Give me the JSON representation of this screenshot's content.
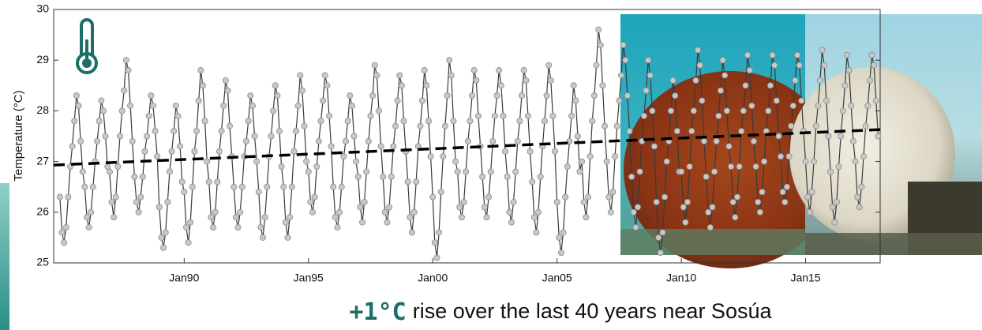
{
  "chart_data": {
    "type": "line",
    "y_label": "Temperature (°C)",
    "caption": {
      "highlight": "+1°C",
      "text": "rise over the last 40 years near Sosúa"
    },
    "xlim": [
      "1984-10",
      "2018-01"
    ],
    "xticks": [
      {
        "value": "1990-01",
        "label": "Jan90"
      },
      {
        "value": "1995-01",
        "label": "Jan95"
      },
      {
        "value": "2000-01",
        "label": "Jan00"
      },
      {
        "value": "2005-01",
        "label": "Jan05"
      },
      {
        "value": "2010-01",
        "label": "Jan10"
      },
      {
        "value": "2015-01",
        "label": "Jan15"
      }
    ],
    "ylim": [
      25,
      30
    ],
    "yticks": [
      25,
      26,
      27,
      28,
      29,
      30
    ],
    "color": "#3a3a3a",
    "marker_color": "#c8c8c8",
    "trend": {
      "color": "#000000",
      "x": [
        "1984-10",
        "2018-01"
      ],
      "values": [
        26.93,
        27.63
      ]
    },
    "x": [
      "1985-01",
      "1985-02",
      "1985-03",
      "1985-04",
      "1985-05",
      "1985-06",
      "1985-07",
      "1985-08",
      "1985-09",
      "1985-10",
      "1985-11",
      "1985-12",
      "1986-01",
      "1986-02",
      "1986-03",
      "1986-04",
      "1986-05",
      "1986-06",
      "1986-07",
      "1986-08",
      "1986-09",
      "1986-10",
      "1986-11",
      "1986-12",
      "1987-01",
      "1987-02",
      "1987-03",
      "1987-04",
      "1987-05",
      "1987-06",
      "1987-07",
      "1987-08",
      "1987-09",
      "1987-10",
      "1987-11",
      "1987-12",
      "1988-01",
      "1988-02",
      "1988-03",
      "1988-04",
      "1988-05",
      "1988-06",
      "1988-07",
      "1988-08",
      "1988-09",
      "1988-10",
      "1988-11",
      "1988-12",
      "1989-01",
      "1989-02",
      "1989-03",
      "1989-04",
      "1989-05",
      "1989-06",
      "1989-07",
      "1989-08",
      "1989-09",
      "1989-10",
      "1989-11",
      "1989-12",
      "1990-01",
      "1990-02",
      "1990-03",
      "1990-04",
      "1990-05",
      "1990-06",
      "1990-07",
      "1990-08",
      "1990-09",
      "1990-10",
      "1990-11",
      "1990-12",
      "1991-01",
      "1991-02",
      "1991-03",
      "1991-04",
      "1991-05",
      "1991-06",
      "1991-07",
      "1991-08",
      "1991-09",
      "1991-10",
      "1991-11",
      "1991-12",
      "1992-01",
      "1992-02",
      "1992-03",
      "1992-04",
      "1992-05",
      "1992-06",
      "1992-07",
      "1992-08",
      "1992-09",
      "1992-10",
      "1992-11",
      "1992-12",
      "1993-01",
      "1993-02",
      "1993-03",
      "1993-04",
      "1993-05",
      "1993-06",
      "1993-07",
      "1993-08",
      "1993-09",
      "1993-10",
      "1993-11",
      "1993-12",
      "1994-01",
      "1994-02",
      "1994-03",
      "1994-04",
      "1994-05",
      "1994-06",
      "1994-07",
      "1994-08",
      "1994-09",
      "1994-10",
      "1994-11",
      "1994-12",
      "1995-01",
      "1995-02",
      "1995-03",
      "1995-04",
      "1995-05",
      "1995-06",
      "1995-07",
      "1995-08",
      "1995-09",
      "1995-10",
      "1995-11",
      "1995-12",
      "1996-01",
      "1996-02",
      "1996-03",
      "1996-04",
      "1996-05",
      "1996-06",
      "1996-07",
      "1996-08",
      "1996-09",
      "1996-10",
      "1996-11",
      "1996-12",
      "1997-01",
      "1997-02",
      "1997-03",
      "1997-04",
      "1997-05",
      "1997-06",
      "1997-07",
      "1997-08",
      "1997-09",
      "1997-10",
      "1997-11",
      "1997-12",
      "1998-01",
      "1998-02",
      "1998-03",
      "1998-04",
      "1998-05",
      "1998-06",
      "1998-07",
      "1998-08",
      "1998-09",
      "1998-10",
      "1998-11",
      "1998-12",
      "1999-01",
      "1999-02",
      "1999-03",
      "1999-04",
      "1999-05",
      "1999-06",
      "1999-07",
      "1999-08",
      "1999-09",
      "1999-10",
      "1999-11",
      "1999-12",
      "2000-01",
      "2000-02",
      "2000-03",
      "2000-04",
      "2000-05",
      "2000-06",
      "2000-07",
      "2000-08",
      "2000-09",
      "2000-10",
      "2000-11",
      "2000-12",
      "2001-01",
      "2001-02",
      "2001-03",
      "2001-04",
      "2001-05",
      "2001-06",
      "2001-07",
      "2001-08",
      "2001-09",
      "2001-10",
      "2001-11",
      "2001-12",
      "2002-01",
      "2002-02",
      "2002-03",
      "2002-04",
      "2002-05",
      "2002-06",
      "2002-07",
      "2002-08",
      "2002-09",
      "2002-10",
      "2002-11",
      "2002-12",
      "2003-01",
      "2003-02",
      "2003-03",
      "2003-04",
      "2003-05",
      "2003-06",
      "2003-07",
      "2003-08",
      "2003-09",
      "2003-10",
      "2003-11",
      "2003-12",
      "2004-01",
      "2004-02",
      "2004-03",
      "2004-04",
      "2004-05",
      "2004-06",
      "2004-07",
      "2004-08",
      "2004-09",
      "2004-10",
      "2004-11",
      "2004-12",
      "2005-01",
      "2005-02",
      "2005-03",
      "2005-04",
      "2005-05",
      "2005-06",
      "2005-07",
      "2005-08",
      "2005-09",
      "2005-10",
      "2005-11",
      "2005-12",
      "2006-01",
      "2006-02",
      "2006-03",
      "2006-04",
      "2006-05",
      "2006-06",
      "2006-07",
      "2006-08",
      "2006-09",
      "2006-10",
      "2006-11",
      "2006-12",
      "2007-01",
      "2007-02",
      "2007-03",
      "2007-04",
      "2007-05",
      "2007-06",
      "2007-07",
      "2007-08",
      "2007-09",
      "2007-10",
      "2007-11",
      "2007-12",
      "2008-01",
      "2008-02",
      "2008-03",
      "2008-04",
      "2008-05",
      "2008-06",
      "2008-07",
      "2008-08",
      "2008-09",
      "2008-10",
      "2008-11",
      "2008-12",
      "2009-01",
      "2009-02",
      "2009-03",
      "2009-04",
      "2009-05",
      "2009-06",
      "2009-07",
      "2009-08",
      "2009-09",
      "2009-10",
      "2009-11",
      "2009-12",
      "2010-01",
      "2010-02",
      "2010-03",
      "2010-04",
      "2010-05",
      "2010-06",
      "2010-07",
      "2010-08",
      "2010-09",
      "2010-10",
      "2010-11",
      "2010-12",
      "2011-01",
      "2011-02",
      "2011-03",
      "2011-04",
      "2011-05",
      "2011-06",
      "2011-07",
      "2011-08",
      "2011-09",
      "2011-10",
      "2011-11",
      "2011-12",
      "2012-01",
      "2012-02",
      "2012-03",
      "2012-04",
      "2012-05",
      "2012-06",
      "2012-07",
      "2012-08",
      "2012-09",
      "2012-10",
      "2012-11",
      "2012-12",
      "2013-01",
      "2013-02",
      "2013-03",
      "2013-04",
      "2013-05",
      "2013-06",
      "2013-07",
      "2013-08",
      "2013-09",
      "2013-10",
      "2013-11",
      "2013-12",
      "2014-01",
      "2014-02",
      "2014-03",
      "2014-04",
      "2014-05",
      "2014-06",
      "2014-07",
      "2014-08",
      "2014-09",
      "2014-10",
      "2014-11",
      "2014-12",
      "2015-01",
      "2015-02",
      "2015-03",
      "2015-04",
      "2015-05",
      "2015-06",
      "2015-07",
      "2015-08",
      "2015-09",
      "2015-10",
      "2015-11",
      "2015-12",
      "2016-01",
      "2016-02",
      "2016-03",
      "2016-04",
      "2016-05",
      "2016-06",
      "2016-07",
      "2016-08",
      "2016-09",
      "2016-10",
      "2016-11",
      "2016-12",
      "2017-01",
      "2017-02",
      "2017-03",
      "2017-04",
      "2017-05",
      "2017-06",
      "2017-07",
      "2017-08",
      "2017-09",
      "2017-10",
      "2017-11",
      "2017-12"
    ],
    "values": [
      26.3,
      25.6,
      25.4,
      25.7,
      26.3,
      26.9,
      27.3,
      27.8,
      28.3,
      28.1,
      27.4,
      26.8,
      26.5,
      25.9,
      25.7,
      26.0,
      26.5,
      27.0,
      27.4,
      27.8,
      28.2,
      28.0,
      27.5,
      26.9,
      26.8,
      26.2,
      25.9,
      26.3,
      26.9,
      27.5,
      28.0,
      28.4,
      29.0,
      28.8,
      28.1,
      27.4,
      26.7,
      26.2,
      26.0,
      26.3,
      26.7,
      27.2,
      27.5,
      27.9,
      28.3,
      28.1,
      27.6,
      27.1,
      26.1,
      25.5,
      25.3,
      25.6,
      26.2,
      26.8,
      27.2,
      27.6,
      28.1,
      27.9,
      27.3,
      26.6,
      26.4,
      25.7,
      25.4,
      25.8,
      26.5,
      27.2,
      27.6,
      28.2,
      28.8,
      28.5,
      27.8,
      27.0,
      26.6,
      25.9,
      25.7,
      26.0,
      26.6,
      27.2,
      27.6,
      28.1,
      28.6,
      28.4,
      27.7,
      27.1,
      26.5,
      25.9,
      25.7,
      26.0,
      26.5,
      27.1,
      27.4,
      27.8,
      28.3,
      28.1,
      27.5,
      27.0,
      26.4,
      25.7,
      25.5,
      25.9,
      26.5,
      27.1,
      27.5,
      28.0,
      28.5,
      28.3,
      27.6,
      26.9,
      26.5,
      25.8,
      25.5,
      25.9,
      26.5,
      27.2,
      27.6,
      28.1,
      28.7,
      28.4,
      27.7,
      27.0,
      26.8,
      26.2,
      26.0,
      26.3,
      26.9,
      27.4,
      27.8,
      28.2,
      28.7,
      28.5,
      27.9,
      27.3,
      26.5,
      25.9,
      25.7,
      26.0,
      26.5,
      27.1,
      27.4,
      27.8,
      28.3,
      28.1,
      27.5,
      27.0,
      26.7,
      26.1,
      25.8,
      26.2,
      26.8,
      27.4,
      27.9,
      28.3,
      28.9,
      28.7,
      28.0,
      27.3,
      26.7,
      26.0,
      25.8,
      26.1,
      26.7,
      27.3,
      27.7,
      28.2,
      28.7,
      28.5,
      27.8,
      27.2,
      26.6,
      25.9,
      25.6,
      26.0,
      26.6,
      27.3,
      27.7,
      28.2,
      28.8,
      28.5,
      27.8,
      27.1,
      26.3,
      25.4,
      25.1,
      25.6,
      26.4,
      27.1,
      27.7,
      28.3,
      29.0,
      28.7,
      27.8,
      27.0,
      26.8,
      26.1,
      25.9,
      26.2,
      26.8,
      27.4,
      27.8,
      28.3,
      28.8,
      28.6,
      27.9,
      27.3,
      26.7,
      26.1,
      25.9,
      26.3,
      26.8,
      27.4,
      27.9,
      28.3,
      28.8,
      28.5,
      27.9,
      27.2,
      26.7,
      26.0,
      25.8,
      26.2,
      26.8,
      27.4,
      27.8,
      28.3,
      28.8,
      28.6,
      27.9,
      27.2,
      26.6,
      25.9,
      25.6,
      26.0,
      26.7,
      27.3,
      27.8,
      28.3,
      28.9,
      28.6,
      27.9,
      27.2,
      26.2,
      25.5,
      25.2,
      25.6,
      26.3,
      26.9,
      27.4,
      27.9,
      28.5,
      28.2,
      27.5,
      26.8,
      27.0,
      26.2,
      25.9,
      26.3,
      27.1,
      27.8,
      28.3,
      28.9,
      29.6,
      29.3,
      28.5,
      27.7,
      27.0,
      26.3,
      26.0,
      26.4,
      27.1,
      27.7,
      28.2,
      28.7,
      29.3,
      29.0,
      28.3,
      27.6,
      26.7,
      26.0,
      25.7,
      26.1,
      26.8,
      27.4,
      27.9,
      28.4,
      29.0,
      28.7,
      28.0,
      27.3,
      26.2,
      25.5,
      25.2,
      25.6,
      26.3,
      27.0,
      27.4,
      28.0,
      28.6,
      28.3,
      27.6,
      26.8,
      26.8,
      26.1,
      25.8,
      26.2,
      26.9,
      27.6,
      28.0,
      28.6,
      29.2,
      28.9,
      28.2,
      27.4,
      26.7,
      26.0,
      25.7,
      26.1,
      26.8,
      27.4,
      27.9,
      28.4,
      29.0,
      28.7,
      28.0,
      27.3,
      26.9,
      26.2,
      25.9,
      26.3,
      26.9,
      27.6,
      28.0,
      28.5,
      29.1,
      28.8,
      28.1,
      27.4,
      26.9,
      26.2,
      26.0,
      26.4,
      27.0,
      27.6,
      28.0,
      28.5,
      29.1,
      28.9,
      28.2,
      27.5,
      27.1,
      26.4,
      26.2,
      26.5,
      27.1,
      27.7,
      28.1,
      28.6,
      29.1,
      28.9,
      28.2,
      27.6,
      27.0,
      26.3,
      26.0,
      26.4,
      27.0,
      27.7,
      28.1,
      28.6,
      29.2,
      28.9,
      28.2,
      27.5,
      26.8,
      26.1,
      25.8,
      26.2,
      26.9,
      27.5,
      28.0,
      28.5,
      29.1,
      28.8,
      28.1,
      27.4,
      27.0,
      26.3,
      26.1,
      26.5,
      27.1,
      27.7,
      28.1,
      28.6,
      29.1,
      28.9,
      28.2,
      27.5
    ]
  }
}
